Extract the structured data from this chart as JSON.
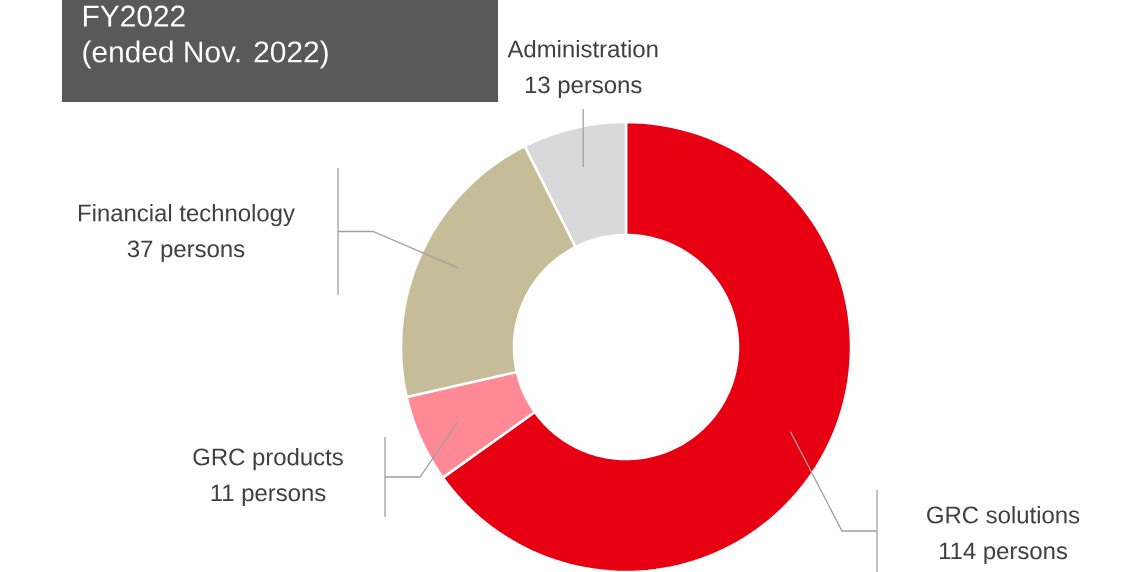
{
  "chart_data": {
    "type": "donut",
    "title": "FY2022",
    "subtitle": "(ended Nov. 2022)",
    "categories": [
      "GRC solutions",
      "GRC products",
      "Financial technology",
      "Administration"
    ],
    "values": [
      114,
      11,
      37,
      13
    ],
    "value_labels": [
      "114 persons",
      "11 persons",
      "37 persons",
      "13 persons"
    ],
    "colors": [
      "#e60012",
      "#ff8a96",
      "#c5bd98",
      "#d9d9d9"
    ]
  }
}
